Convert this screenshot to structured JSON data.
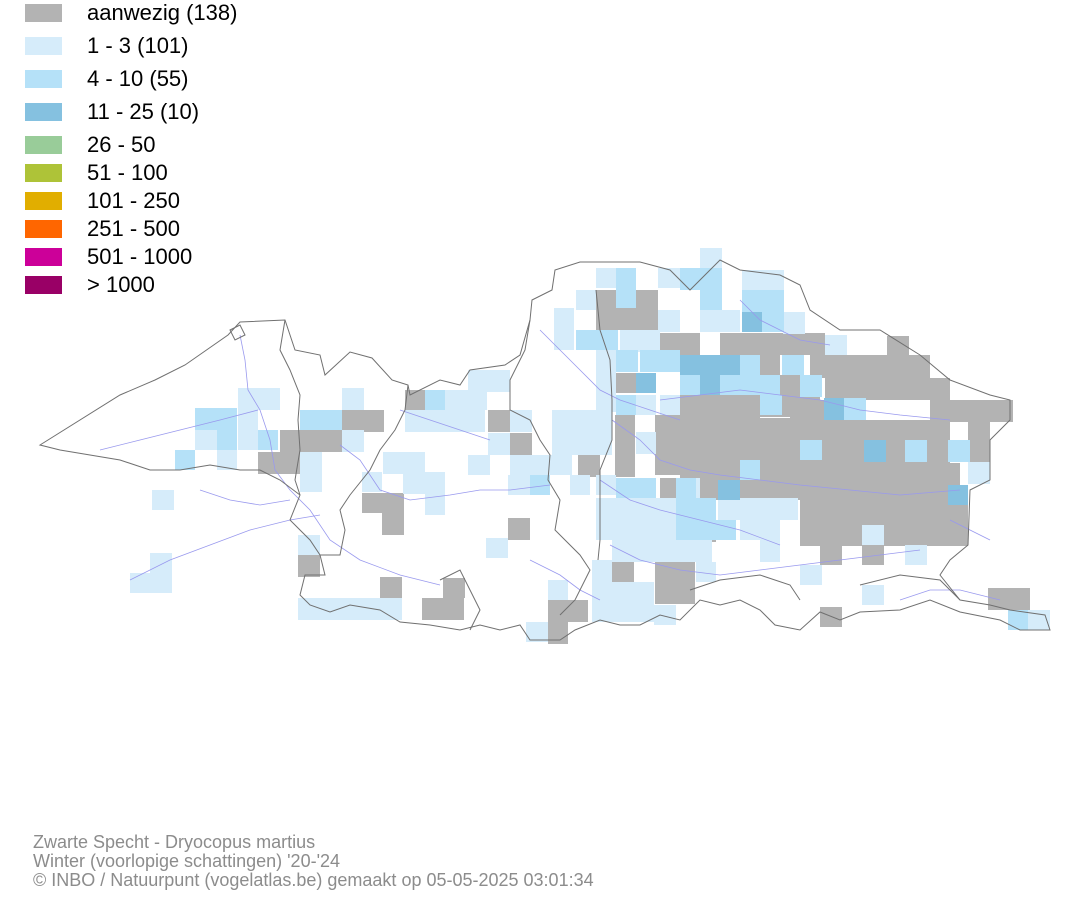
{
  "legend": {
    "items": [
      {
        "label": "aanwezig (138)",
        "color": "#b3b3b3"
      },
      {
        "label": "1 - 3 (101)",
        "color": "#d6ecfa"
      },
      {
        "label": "4 - 10 (55)",
        "color": "#b5e1f8"
      },
      {
        "label": "11 - 25 (10)",
        "color": "#85c1e0"
      },
      {
        "label": "26 - 50",
        "color": "#99cc99"
      },
      {
        "label": "51 - 100",
        "color": "#aec338"
      },
      {
        "label": "101 - 250",
        "color": "#e1ae00"
      },
      {
        "label": "251 - 500",
        "color": "#ff6600"
      },
      {
        "label": "501 - 1000",
        "color": "#cc0099"
      },
      {
        "label": "> 1000",
        "color": "#990066"
      }
    ]
  },
  "footer": {
    "species": "Zwarte Specht - Dryocopus martius",
    "period": "Winter (voorlopige schattingen) '20-'24",
    "credit": "© INBO / Natuurpunt (vogelatlas.be) gemaakt op 05-05-2025 03:01:34"
  },
  "map": {
    "border_color": "#707070",
    "river_color": "#9999ee",
    "background": "#ffffff"
  }
}
